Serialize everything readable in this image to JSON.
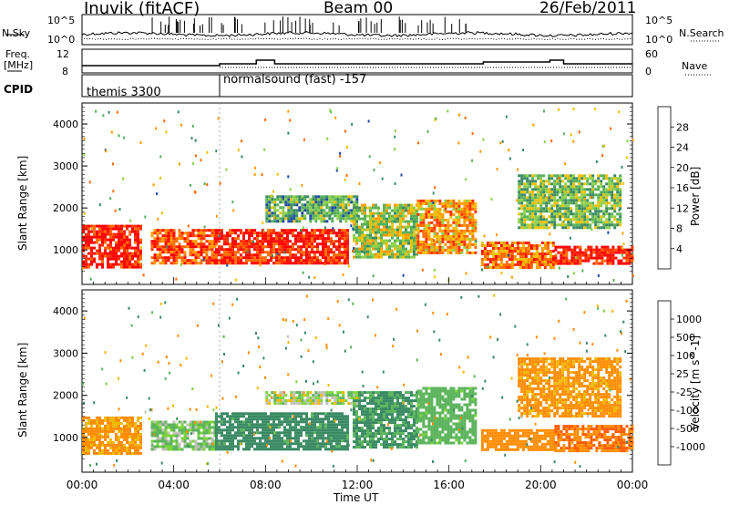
{
  "header": {
    "station": "Inuvik (fitACF)",
    "beam": "Beam 00",
    "date": "26/Feb/2011"
  },
  "strips": {
    "nsky_label": "N.Sky",
    "nsky_ticks": [
      "10^5",
      "10^0"
    ],
    "nsearch_label": "N.Search",
    "freq_label_1": "Freq.",
    "freq_label_2": "[MHz]",
    "freq_ticks": [
      "12",
      "8"
    ],
    "nave_label": "Nave",
    "nave_ticks": [
      "60",
      "0"
    ],
    "cpid_label": "CPID",
    "cpid_segments": [
      "themis 3300",
      "normalsound (fast) -157"
    ]
  },
  "colorbars": {
    "power": {
      "label": "Power [dB]",
      "ticks": [
        "28",
        "24",
        "20",
        "16",
        "12",
        "8",
        "4"
      ],
      "colors": [
        "#0000ff",
        "#1f4aa8",
        "#3a8a64",
        "#58b058",
        "#8cd048",
        "#f0c000",
        "#ff9a00",
        "#ff6a00",
        "#ff3000",
        "#ff0000"
      ]
    },
    "velocity": {
      "label": "Velocity [m s^-1]",
      "ticks": [
        "1000",
        "500",
        "100",
        "25",
        "-25",
        "-100",
        "-500",
        "-1000"
      ],
      "colors": [
        "#1f3ab0",
        "#2a6aa0",
        "#3a8a64",
        "#5cb45c",
        "#7ad43a",
        "#c0c0b8",
        "#f0b800",
        "#ff8c00",
        "#ff5a00",
        "#ff0000"
      ]
    }
  },
  "chart_data": [
    {
      "type": "heatmap",
      "title": "Power",
      "xlabel": "Time UT",
      "ylabel": "Slant Range [km]",
      "xlim": [
        "00:00",
        "24:00"
      ],
      "ylim": [
        180,
        4500
      ],
      "x_ticks": [
        "00:00",
        "04:00",
        "08:00",
        "12:00",
        "16:00",
        "20:00",
        "00:00"
      ],
      "y_ticks": [
        "1000",
        "2000",
        "3000",
        "4000"
      ],
      "colorbar_range_dB": [
        0,
        30
      ],
      "regions": [
        {
          "t_start": 0.0,
          "t_end": 2.6,
          "r_low": 600,
          "r_high": 1600,
          "value_dB": 28
        },
        {
          "t_start": 3.0,
          "t_end": 5.8,
          "r_low": 700,
          "r_high": 1500,
          "value_dB": 24
        },
        {
          "t_start": 5.8,
          "t_end": 11.6,
          "r_low": 700,
          "r_high": 1500,
          "value_dB": 27
        },
        {
          "t_start": 11.8,
          "t_end": 14.6,
          "r_low": 800,
          "r_high": 2100,
          "value_dB": 14
        },
        {
          "t_start": 14.6,
          "t_end": 17.2,
          "r_low": 900,
          "r_high": 2200,
          "value_dB": 20
        },
        {
          "t_start": 17.4,
          "t_end": 20.6,
          "r_low": 600,
          "r_high": 1200,
          "value_dB": 22
        },
        {
          "t_start": 20.6,
          "t_end": 24.0,
          "r_low": 700,
          "r_high": 1100,
          "value_dB": 28
        },
        {
          "t_start": 19.0,
          "t_end": 23.5,
          "r_low": 1500,
          "r_high": 2800,
          "value_dB": 12
        },
        {
          "t_start": 8.0,
          "t_end": 12.0,
          "r_low": 1700,
          "r_high": 2300,
          "value_dB": 10
        }
      ]
    },
    {
      "type": "heatmap",
      "title": "Velocity",
      "xlabel": "Time UT",
      "ylabel": "Slant Range [km]",
      "xlim": [
        "00:00",
        "24:00"
      ],
      "ylim": [
        180,
        4500
      ],
      "x_ticks": [
        "00:00",
        "04:00",
        "08:00",
        "12:00",
        "16:00",
        "20:00",
        "00:00"
      ],
      "y_ticks": [
        "1000",
        "2000",
        "3000",
        "4000"
      ],
      "regions": [
        {
          "t_start": 0.0,
          "t_end": 2.6,
          "r_low": 600,
          "r_high": 1500,
          "value_ms": -120
        },
        {
          "t_start": 3.0,
          "t_end": 5.8,
          "r_low": 700,
          "r_high": 1400,
          "value_ms": 20
        },
        {
          "t_start": 5.8,
          "t_end": 11.6,
          "r_low": 700,
          "r_high": 1600,
          "value_ms": 180
        },
        {
          "t_start": 11.8,
          "t_end": 14.6,
          "r_low": 800,
          "r_high": 2100,
          "value_ms": 120
        },
        {
          "t_start": 14.6,
          "t_end": 17.2,
          "r_low": 900,
          "r_high": 2200,
          "value_ms": 60
        },
        {
          "t_start": 17.4,
          "t_end": 20.6,
          "r_low": 700,
          "r_high": 1200,
          "value_ms": -300
        },
        {
          "t_start": 20.6,
          "t_end": 24.0,
          "r_low": 700,
          "r_high": 1300,
          "value_ms": -500
        },
        {
          "t_start": 19.0,
          "t_end": 23.5,
          "r_low": 1500,
          "r_high": 2900,
          "value_ms": -140
        },
        {
          "t_start": 8.0,
          "t_end": 12.0,
          "r_low": 1800,
          "r_high": 2100,
          "value_ms": 0
        }
      ]
    }
  ]
}
